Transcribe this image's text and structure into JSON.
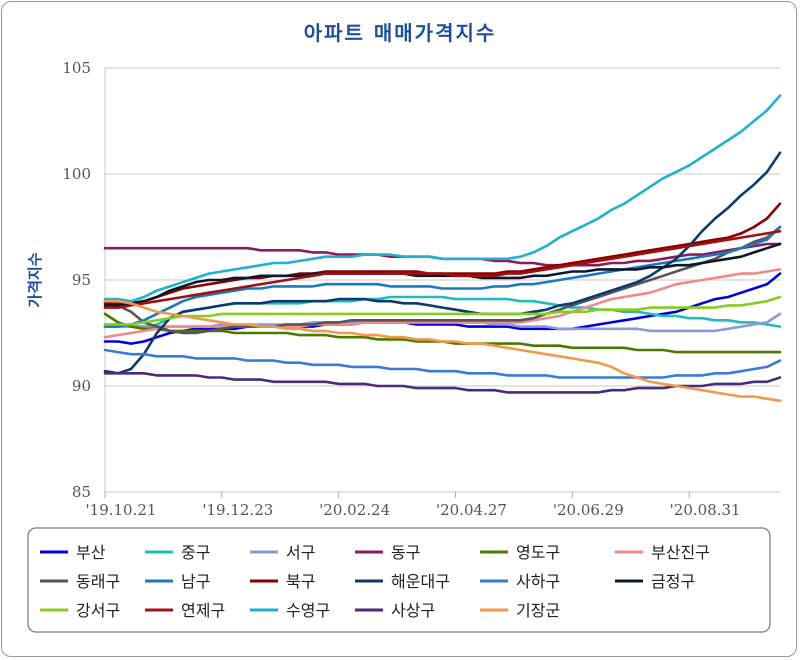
{
  "chart_data": {
    "type": "line",
    "title": "아파트 매매가격지수",
    "ylabel": "가격지수",
    "xlabel": "",
    "ylim": [
      85,
      105
    ],
    "yticks": [
      85,
      90,
      95,
      100,
      105
    ],
    "x_tick_labels": [
      "'19.10.21",
      "'19.12.23",
      "'20.02.24",
      "'20.04.27",
      "'20.06.29",
      "'20.08.31"
    ],
    "x_points": 53,
    "x_tick_indices": [
      0,
      9,
      18,
      27,
      36,
      45
    ],
    "grid": "horizontal",
    "legend_position": "bottom",
    "series": [
      {
        "name": "부산",
        "color": "#0000dd",
        "values": [
          92.1,
          92.1,
          92.0,
          92.1,
          92.3,
          92.5,
          92.6,
          92.7,
          92.7,
          92.7,
          92.7,
          92.8,
          92.8,
          92.8,
          92.8,
          92.8,
          92.8,
          92.9,
          92.9,
          92.9,
          93.0,
          93.0,
          93.0,
          93.0,
          92.9,
          92.9,
          92.9,
          92.9,
          92.8,
          92.8,
          92.8,
          92.8,
          92.7,
          92.7,
          92.7,
          92.7,
          92.7,
          92.8,
          92.9,
          93.0,
          93.1,
          93.2,
          93.3,
          93.4,
          93.5,
          93.7,
          93.9,
          94.1,
          94.2,
          94.4,
          94.6,
          94.8,
          95.3
        ]
      },
      {
        "name": "중구",
        "color": "#22bbbb",
        "values": [
          92.9,
          92.9,
          92.8,
          92.8,
          92.9,
          93.2,
          93.5,
          93.6,
          93.7,
          93.8,
          93.9,
          93.9,
          93.9,
          93.9,
          93.9,
          93.9,
          94.0,
          94.0,
          94.0,
          94.0,
          94.1,
          94.1,
          94.2,
          94.2,
          94.2,
          94.2,
          94.2,
          94.1,
          94.1,
          94.1,
          94.1,
          94.1,
          94.0,
          94.0,
          93.9,
          93.8,
          93.7,
          93.7,
          93.6,
          93.6,
          93.5,
          93.5,
          93.4,
          93.3,
          93.3,
          93.2,
          93.2,
          93.1,
          93.1,
          93.0,
          93.0,
          92.9,
          92.8
        ]
      },
      {
        "name": "서구",
        "color": "#8a9ad6",
        "values": [
          92.8,
          92.8,
          92.8,
          92.8,
          92.8,
          92.8,
          92.8,
          92.8,
          92.8,
          92.9,
          92.9,
          92.9,
          92.9,
          92.9,
          92.9,
          92.9,
          93.0,
          93.0,
          93.0,
          93.0,
          93.0,
          93.0,
          93.0,
          93.0,
          93.0,
          93.0,
          93.0,
          93.0,
          93.0,
          93.0,
          92.9,
          92.9,
          92.8,
          92.8,
          92.8,
          92.7,
          92.7,
          92.7,
          92.7,
          92.7,
          92.7,
          92.7,
          92.6,
          92.6,
          92.6,
          92.6,
          92.6,
          92.6,
          92.7,
          92.8,
          92.9,
          93.0,
          93.4
        ]
      },
      {
        "name": "동구",
        "color": "#8b1a5e",
        "values": [
          96.5,
          96.5,
          96.5,
          96.5,
          96.5,
          96.5,
          96.5,
          96.5,
          96.5,
          96.5,
          96.5,
          96.5,
          96.4,
          96.4,
          96.4,
          96.4,
          96.3,
          96.3,
          96.2,
          96.2,
          96.2,
          96.2,
          96.1,
          96.1,
          96.1,
          96.1,
          96.0,
          96.0,
          96.0,
          96.0,
          95.9,
          95.9,
          95.8,
          95.8,
          95.7,
          95.7,
          95.7,
          95.7,
          95.7,
          95.8,
          95.8,
          95.9,
          95.9,
          96.0,
          96.1,
          96.2,
          96.2,
          96.3,
          96.4,
          96.5,
          96.6,
          96.7,
          96.7
        ]
      },
      {
        "name": "영도구",
        "color": "#4a7a00",
        "values": [
          93.4,
          93.0,
          92.8,
          92.7,
          92.7,
          92.6,
          92.6,
          92.6,
          92.6,
          92.6,
          92.5,
          92.5,
          92.5,
          92.5,
          92.5,
          92.4,
          92.4,
          92.4,
          92.3,
          92.3,
          92.3,
          92.2,
          92.2,
          92.2,
          92.1,
          92.1,
          92.1,
          92.0,
          92.0,
          92.0,
          92.0,
          92.0,
          92.0,
          91.9,
          91.9,
          91.9,
          91.8,
          91.8,
          91.8,
          91.8,
          91.8,
          91.7,
          91.7,
          91.7,
          91.6,
          91.6,
          91.6,
          91.6,
          91.6,
          91.6,
          91.6,
          91.6,
          91.6
        ]
      },
      {
        "name": "부산진구",
        "color": "#f08a8a",
        "values": [
          92.3,
          92.4,
          92.5,
          92.6,
          92.7,
          92.8,
          92.8,
          92.8,
          92.8,
          92.8,
          92.8,
          92.8,
          92.8,
          92.8,
          92.8,
          92.8,
          92.9,
          92.9,
          92.9,
          92.9,
          93.0,
          93.0,
          93.0,
          93.0,
          93.0,
          93.0,
          93.0,
          93.0,
          93.0,
          93.0,
          93.0,
          93.0,
          93.0,
          93.1,
          93.2,
          93.3,
          93.5,
          93.7,
          93.9,
          94.1,
          94.2,
          94.3,
          94.4,
          94.6,
          94.8,
          94.9,
          95.0,
          95.1,
          95.2,
          95.3,
          95.3,
          95.4,
          95.5
        ]
      },
      {
        "name": "동래구",
        "color": "#555555",
        "values": [
          94.0,
          93.8,
          93.5,
          93.0,
          92.8,
          92.6,
          92.5,
          92.5,
          92.6,
          92.7,
          92.8,
          92.8,
          92.8,
          92.8,
          92.9,
          92.9,
          92.9,
          93.0,
          93.0,
          93.1,
          93.1,
          93.1,
          93.1,
          93.1,
          93.1,
          93.1,
          93.1,
          93.1,
          93.1,
          93.1,
          93.1,
          93.1,
          93.1,
          93.2,
          93.4,
          93.6,
          93.8,
          94.0,
          94.2,
          94.4,
          94.6,
          94.8,
          95.0,
          95.2,
          95.4,
          95.6,
          95.8,
          96.0,
          96.3,
          96.5,
          96.8,
          97.0,
          97.5
        ]
      },
      {
        "name": "남구",
        "color": "#1a7ac0",
        "values": [
          92.8,
          92.8,
          92.9,
          93.1,
          93.4,
          93.7,
          94.0,
          94.2,
          94.3,
          94.4,
          94.5,
          94.6,
          94.6,
          94.7,
          94.7,
          94.7,
          94.7,
          94.8,
          94.8,
          94.8,
          94.8,
          94.8,
          94.7,
          94.7,
          94.7,
          94.7,
          94.6,
          94.6,
          94.6,
          94.6,
          94.7,
          94.7,
          94.8,
          94.8,
          94.9,
          95.0,
          95.1,
          95.2,
          95.3,
          95.4,
          95.5,
          95.6,
          95.7,
          95.8,
          95.9,
          96.0,
          96.1,
          96.2,
          96.3,
          96.5,
          96.7,
          96.9,
          97.5
        ]
      },
      {
        "name": "북구",
        "color": "#8b0000",
        "values": [
          93.9,
          93.9,
          93.9,
          94.0,
          94.2,
          94.4,
          94.6,
          94.7,
          94.8,
          94.9,
          95.0,
          95.1,
          95.1,
          95.2,
          95.2,
          95.3,
          95.3,
          95.4,
          95.4,
          95.4,
          95.4,
          95.4,
          95.4,
          95.4,
          95.4,
          95.3,
          95.3,
          95.3,
          95.3,
          95.3,
          95.3,
          95.4,
          95.4,
          95.5,
          95.6,
          95.7,
          95.8,
          95.9,
          96.0,
          96.1,
          96.2,
          96.3,
          96.4,
          96.5,
          96.6,
          96.7,
          96.8,
          96.9,
          97.0,
          97.2,
          97.5,
          97.9,
          98.6
        ]
      },
      {
        "name": "해운대구",
        "color": "#0c3a6e",
        "values": [
          90.7,
          90.6,
          90.8,
          91.5,
          92.5,
          93.2,
          93.5,
          93.6,
          93.7,
          93.8,
          93.9,
          93.9,
          93.9,
          94.0,
          94.0,
          94.0,
          94.0,
          94.0,
          94.1,
          94.1,
          94.1,
          94.0,
          94.0,
          93.9,
          93.9,
          93.8,
          93.7,
          93.6,
          93.5,
          93.4,
          93.4,
          93.4,
          93.4,
          93.5,
          93.6,
          93.8,
          93.9,
          94.1,
          94.3,
          94.5,
          94.7,
          94.9,
          95.2,
          95.6,
          96.0,
          96.6,
          97.3,
          97.9,
          98.4,
          99.0,
          99.5,
          100.1,
          101.0
        ]
      },
      {
        "name": "사하구",
        "color": "#3a7ad8",
        "values": [
          91.7,
          91.6,
          91.5,
          91.5,
          91.4,
          91.4,
          91.4,
          91.3,
          91.3,
          91.3,
          91.3,
          91.2,
          91.2,
          91.2,
          91.1,
          91.1,
          91.0,
          91.0,
          91.0,
          90.9,
          90.9,
          90.9,
          90.8,
          90.8,
          90.8,
          90.7,
          90.7,
          90.7,
          90.6,
          90.6,
          90.6,
          90.5,
          90.5,
          90.5,
          90.5,
          90.4,
          90.4,
          90.4,
          90.4,
          90.4,
          90.4,
          90.4,
          90.4,
          90.4,
          90.5,
          90.5,
          90.5,
          90.6,
          90.6,
          90.7,
          90.8,
          90.9,
          91.2
        ]
      },
      {
        "name": "금정구",
        "color": "#0a1a2e",
        "values": [
          93.8,
          93.8,
          93.9,
          94.0,
          94.2,
          94.5,
          94.7,
          94.9,
          95.0,
          95.0,
          95.1,
          95.1,
          95.2,
          95.2,
          95.2,
          95.2,
          95.3,
          95.3,
          95.3,
          95.3,
          95.3,
          95.3,
          95.3,
          95.3,
          95.2,
          95.2,
          95.2,
          95.2,
          95.2,
          95.1,
          95.1,
          95.1,
          95.1,
          95.2,
          95.2,
          95.3,
          95.4,
          95.4,
          95.5,
          95.5,
          95.5,
          95.5,
          95.6,
          95.6,
          95.7,
          95.7,
          95.8,
          95.9,
          96.0,
          96.1,
          96.3,
          96.5,
          96.7
        ]
      },
      {
        "name": "강서구",
        "color": "#88cc22",
        "values": [
          92.9,
          92.9,
          92.9,
          93.0,
          93.1,
          93.2,
          93.3,
          93.3,
          93.3,
          93.4,
          93.4,
          93.4,
          93.4,
          93.4,
          93.4,
          93.4,
          93.4,
          93.4,
          93.4,
          93.4,
          93.4,
          93.4,
          93.4,
          93.4,
          93.4,
          93.4,
          93.4,
          93.4,
          93.4,
          93.4,
          93.4,
          93.4,
          93.4,
          93.4,
          93.4,
          93.5,
          93.5,
          93.5,
          93.6,
          93.6,
          93.6,
          93.6,
          93.7,
          93.7,
          93.7,
          93.7,
          93.7,
          93.7,
          93.8,
          93.8,
          93.9,
          94.0,
          94.2
        ]
      },
      {
        "name": "연제구",
        "color": "#a01010",
        "values": [
          93.7,
          93.7,
          93.8,
          93.9,
          94.0,
          94.1,
          94.2,
          94.3,
          94.4,
          94.5,
          94.6,
          94.7,
          94.8,
          94.9,
          95.0,
          95.1,
          95.2,
          95.3,
          95.3,
          95.3,
          95.3,
          95.3,
          95.3,
          95.3,
          95.3,
          95.3,
          95.3,
          95.2,
          95.2,
          95.2,
          95.2,
          95.3,
          95.3,
          95.4,
          95.5,
          95.6,
          95.7,
          95.8,
          95.9,
          96.0,
          96.1,
          96.2,
          96.3,
          96.4,
          96.5,
          96.6,
          96.7,
          96.8,
          96.9,
          97.0,
          97.1,
          97.2,
          97.3
        ]
      },
      {
        "name": "수영구",
        "color": "#20b0d0",
        "values": [
          94.1,
          94.1,
          94.0,
          94.2,
          94.5,
          94.7,
          94.9,
          95.1,
          95.3,
          95.4,
          95.5,
          95.6,
          95.7,
          95.8,
          95.8,
          95.9,
          96.0,
          96.1,
          96.1,
          96.1,
          96.2,
          96.2,
          96.2,
          96.1,
          96.1,
          96.1,
          96.0,
          96.0,
          96.0,
          96.0,
          96.0,
          96.0,
          96.1,
          96.3,
          96.6,
          97.0,
          97.3,
          97.6,
          97.9,
          98.3,
          98.6,
          99.0,
          99.4,
          99.8,
          100.1,
          100.4,
          100.8,
          101.2,
          101.6,
          102.0,
          102.5,
          103.0,
          103.7
        ]
      },
      {
        "name": "사상구",
        "color": "#4a2a7a",
        "values": [
          90.6,
          90.6,
          90.6,
          90.6,
          90.5,
          90.5,
          90.5,
          90.5,
          90.4,
          90.4,
          90.3,
          90.3,
          90.3,
          90.2,
          90.2,
          90.2,
          90.2,
          90.2,
          90.1,
          90.1,
          90.1,
          90.0,
          90.0,
          90.0,
          89.9,
          89.9,
          89.9,
          89.9,
          89.8,
          89.8,
          89.8,
          89.7,
          89.7,
          89.7,
          89.7,
          89.7,
          89.7,
          89.7,
          89.7,
          89.8,
          89.8,
          89.9,
          89.9,
          89.9,
          90.0,
          90.0,
          90.0,
          90.1,
          90.1,
          90.1,
          90.2,
          90.2,
          90.4
        ]
      },
      {
        "name": "기장군",
        "color": "#f09a4a",
        "values": [
          94.0,
          94.0,
          93.9,
          93.7,
          93.5,
          93.4,
          93.3,
          93.2,
          93.1,
          93.0,
          92.9,
          92.9,
          92.8,
          92.8,
          92.7,
          92.7,
          92.6,
          92.6,
          92.5,
          92.5,
          92.4,
          92.4,
          92.3,
          92.3,
          92.2,
          92.2,
          92.1,
          92.1,
          92.0,
          92.0,
          91.9,
          91.8,
          91.7,
          91.6,
          91.5,
          91.4,
          91.3,
          91.2,
          91.1,
          90.9,
          90.6,
          90.4,
          90.2,
          90.1,
          90.0,
          89.9,
          89.8,
          89.7,
          89.6,
          89.5,
          89.5,
          89.4,
          89.3
        ]
      }
    ]
  }
}
